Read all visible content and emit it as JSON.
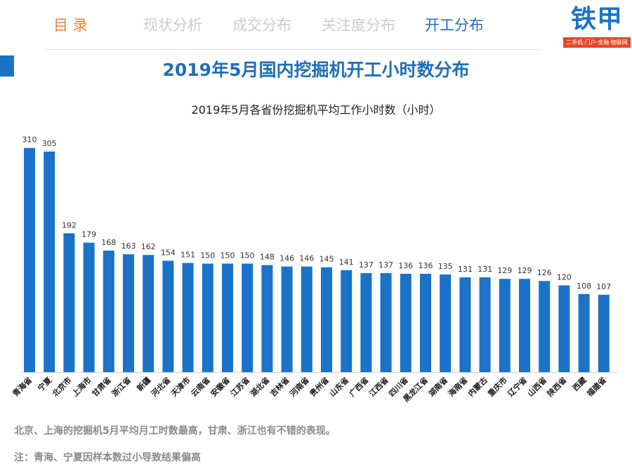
{
  "nav": {
    "items": [
      "目 录",
      "现状分析",
      "成交分布",
      "关注度分布",
      "开工分布"
    ],
    "active_index": 4
  },
  "logo": {
    "text": "铁甲",
    "subtext": "二手机·门户·金融·物联网"
  },
  "colors": {
    "bar": "#1a73c8",
    "title": "#1f6fb7",
    "nav_home": "#e8833a",
    "nav_inactive": "#c9ccd1",
    "logo_band": "#e8472a"
  },
  "page_title": "2019年5月国内挖掘机开工小时数分布",
  "chart_data": {
    "type": "bar",
    "title": "2019年5月各省份挖掘机平均工作小时数（小时）",
    "categories": [
      "青海省",
      "宁夏",
      "北京市",
      "上海市",
      "甘肃省",
      "浙江省",
      "新疆",
      "河北省",
      "天津市",
      "云南省",
      "安徽省",
      "江苏省",
      "湖北省",
      "吉林省",
      "河南省",
      "贵州省",
      "山东省",
      "广西省",
      "江西省",
      "四川省",
      "黑龙江省",
      "湖南省",
      "海南省",
      "内蒙古",
      "重庆市",
      "辽宁省",
      "山西省",
      "陕西省",
      "西藏",
      "福建省"
    ],
    "values": [
      310,
      305,
      192,
      179,
      168,
      163,
      162,
      154,
      151,
      150,
      150,
      150,
      148,
      146,
      146,
      145,
      141,
      137,
      137,
      136,
      136,
      135,
      131,
      131,
      129,
      129,
      126,
      120,
      108,
      107
    ],
    "ylim": [
      0,
      335
    ],
    "grid": false,
    "xlabel": "",
    "ylabel": ""
  },
  "notes": [
    "北京、上海的挖掘机5月平均月工时数最高，甘肃、浙江也有不错的表现。",
    "注：青海、宁夏因样本数过小导致结果偏高"
  ]
}
